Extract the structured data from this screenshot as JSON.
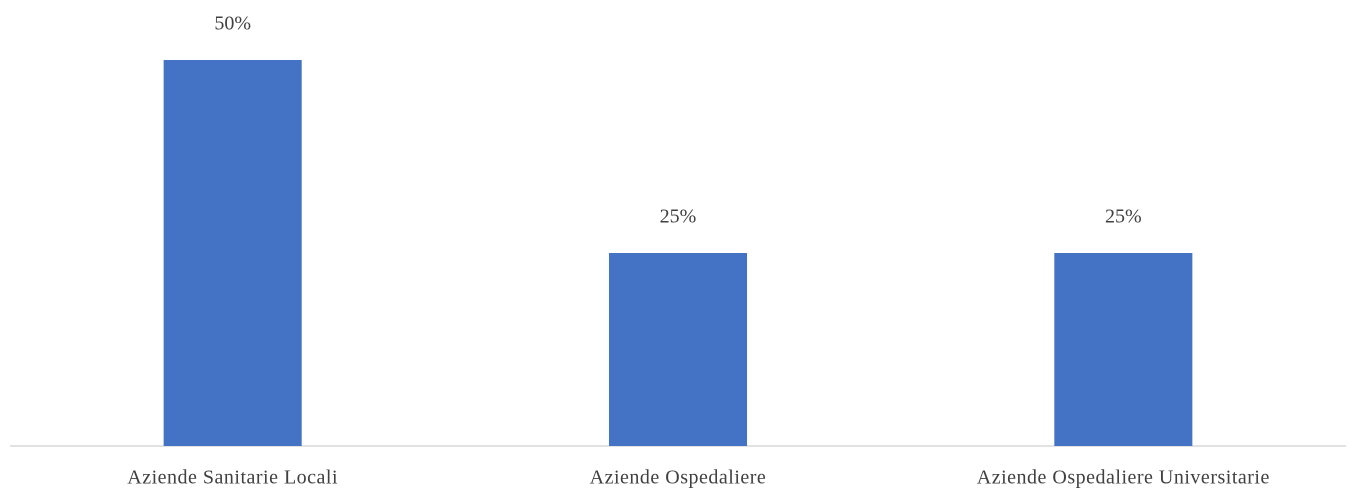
{
  "chart_data": {
    "type": "bar",
    "categories": [
      "Aziende Sanitarie Locali",
      "Aziende Ospedaliere",
      "Aziende Ospedaliere Universitarie"
    ],
    "values": [
      50,
      25,
      25
    ],
    "value_labels": [
      "50%",
      "25%",
      "25%"
    ],
    "color": "#4472c4"
  }
}
